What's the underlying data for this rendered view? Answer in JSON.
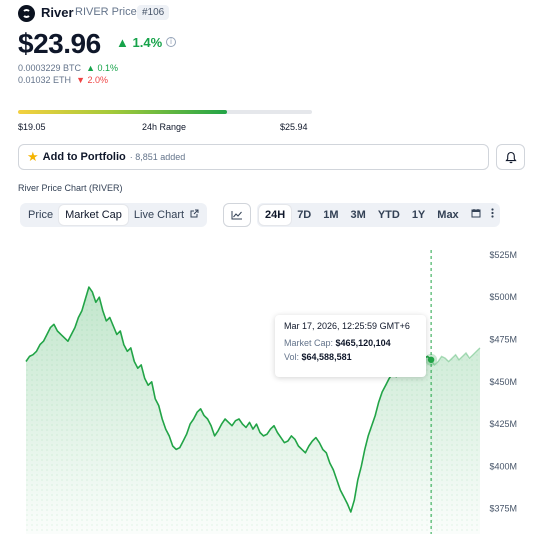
{
  "header": {
    "name": "River",
    "subtitle": "RIVER Price",
    "rank": "#106",
    "price": "$23.96",
    "change": "1.4%",
    "btc_price": "0.0003229 BTC",
    "btc_change": "0.1%",
    "eth_price": "0.01032 ETH",
    "eth_change": "2.0%"
  },
  "range": {
    "low": "$19.05",
    "label": "24h Range",
    "high": "$25.94",
    "position": 0.71
  },
  "portfolio": {
    "label": "Add to Portfolio",
    "added": "· 8,851 added"
  },
  "chart_section_title": "River Price Chart (RIVER)",
  "tabs": [
    "Price",
    "Market Cap",
    "Live Chart"
  ],
  "active_tab": "Market Cap",
  "ranges": [
    "24H",
    "7D",
    "1M",
    "3M",
    "YTD",
    "1Y",
    "Max"
  ],
  "active_range": "24H",
  "tooltip": {
    "time": "Mar 17, 2026, 12:25:59 GMT+6",
    "mcap_label": "Market Cap:",
    "mcap_value": "$465,120,104",
    "vol_label": "Vol:",
    "vol_value": "$64,588,581"
  },
  "colors": {
    "accent_green": "#16a34a",
    "down_red": "#ef4444",
    "line": "#22a447"
  },
  "chart_data": {
    "type": "area",
    "series_label": "Market Cap",
    "y_ticks": [
      "$525M",
      "$500M",
      "$475M",
      "$450M",
      "$425M",
      "$400M",
      "$375M"
    ],
    "y_tick_values": [
      525,
      500,
      475,
      450,
      425,
      400,
      375
    ],
    "ylim": [
      360,
      535
    ],
    "y_unit": "$M",
    "values": [
      462,
      465,
      466,
      468,
      472,
      474,
      478,
      482,
      484,
      480,
      478,
      476,
      474,
      478,
      482,
      488,
      492,
      499,
      506,
      503,
      497,
      500,
      492,
      486,
      488,
      483,
      478,
      480,
      472,
      468,
      470,
      462,
      458,
      460,
      452,
      448,
      450,
      440,
      436,
      428,
      422,
      418,
      412,
      410,
      411,
      415,
      419,
      425,
      428,
      432,
      434,
      430,
      428,
      424,
      418,
      421,
      425,
      428,
      426,
      424,
      427,
      428,
      425,
      423,
      426,
      422,
      425,
      420,
      418,
      419,
      422,
      424,
      420,
      417,
      414,
      415,
      418,
      416,
      412,
      410,
      408,
      412,
      415,
      417,
      414,
      410,
      408,
      402,
      398,
      392,
      386,
      382,
      378,
      373,
      380,
      392,
      400,
      410,
      418,
      424,
      430,
      438,
      444,
      448,
      452,
      455,
      453,
      455,
      458,
      460,
      458,
      462,
      463,
      462,
      464,
      465,
      463,
      460,
      462,
      465,
      464,
      462,
      464,
      466,
      463,
      465,
      467,
      464,
      466,
      468,
      470
    ],
    "highlight_index": 116,
    "forecast_start_index": 116,
    "grid": false,
    "legend": "none"
  }
}
